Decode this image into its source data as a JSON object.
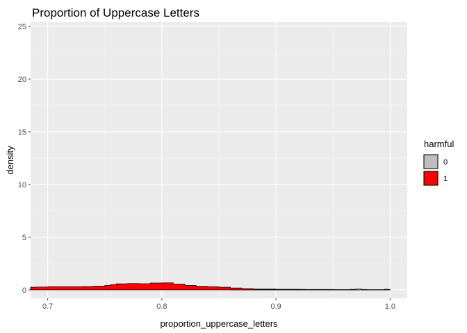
{
  "chart_data": {
    "type": "area",
    "title": "Proportion of Uppercase Letters",
    "xlabel": "proportion_uppercase_letters",
    "ylabel": "density",
    "xlim": [
      0.685,
      1.015
    ],
    "ylim": [
      -0.8,
      25.4
    ],
    "x_ticks": [
      0.7,
      0.8,
      0.9,
      1.0
    ],
    "x_tick_labels": [
      "0.7",
      "0.8",
      "0.9",
      "1.0"
    ],
    "y_ticks": [
      0,
      5,
      10,
      15,
      20,
      25
    ],
    "y_tick_labels": [
      "0",
      "5",
      "10",
      "15",
      "20",
      "25"
    ],
    "grid": true,
    "legend": {
      "title": "harmful",
      "position": "right",
      "entries": [
        {
          "label": "0",
          "color": "#bebebe"
        },
        {
          "label": "1",
          "color": "#ff0000"
        }
      ]
    },
    "series": [
      {
        "name": "1",
        "color": "#ff0000",
        "x": [
          0.685,
          0.69,
          0.7,
          0.71,
          0.72,
          0.73,
          0.74,
          0.75,
          0.755,
          0.76,
          0.77,
          0.78,
          0.79,
          0.8,
          0.81,
          0.82,
          0.83,
          0.84,
          0.85,
          0.86,
          0.87,
          0.88,
          0.9,
          0.92,
          0.95,
          0.97,
          0.98,
          1.0
        ],
        "values": [
          0.25,
          0.27,
          0.3,
          0.3,
          0.3,
          0.32,
          0.35,
          0.42,
          0.5,
          0.57,
          0.6,
          0.58,
          0.65,
          0.66,
          0.55,
          0.42,
          0.33,
          0.3,
          0.25,
          0.18,
          0.12,
          0.08,
          0.05,
          0.04,
          0.02,
          0.02,
          0.01,
          0.0
        ]
      },
      {
        "name": "0",
        "color": "#bebebe",
        "x": [
          0.86,
          0.88,
          0.9,
          0.92,
          0.925,
          0.95,
          0.96,
          0.965,
          0.97,
          0.975,
          0.98,
          0.99,
          0.995,
          0.998,
          1.0
        ],
        "values": [
          0.0,
          0.02,
          0.05,
          0.05,
          0.03,
          0.01,
          0.01,
          0.05,
          0.08,
          0.04,
          0.01,
          0.01,
          0.06,
          0.04,
          0.0
        ]
      }
    ]
  }
}
